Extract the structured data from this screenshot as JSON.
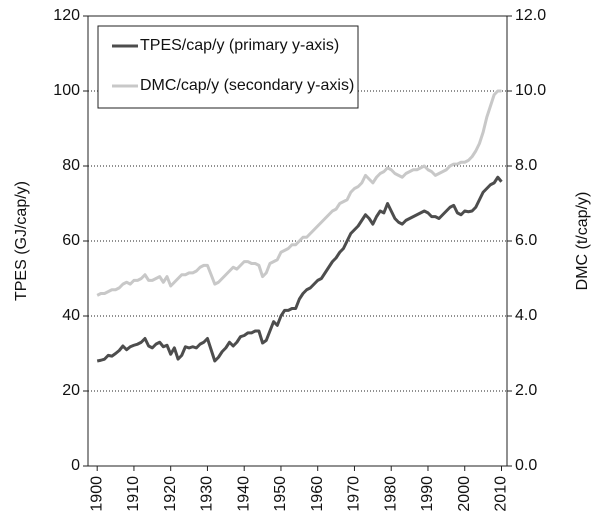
{
  "chart_data": {
    "type": "line",
    "y_label": "TPES (GJ/cap/y)",
    "y2_label": "DMC (t/cap/y)",
    "x": [
      1900,
      1901,
      1902,
      1903,
      1904,
      1905,
      1906,
      1907,
      1908,
      1909,
      1910,
      1911,
      1912,
      1913,
      1914,
      1915,
      1916,
      1917,
      1918,
      1919,
      1920,
      1921,
      1922,
      1923,
      1924,
      1925,
      1926,
      1927,
      1928,
      1929,
      1930,
      1931,
      1932,
      1933,
      1934,
      1935,
      1936,
      1937,
      1938,
      1939,
      1940,
      1941,
      1942,
      1943,
      1944,
      1945,
      1946,
      1947,
      1948,
      1949,
      1950,
      1951,
      1952,
      1953,
      1954,
      1955,
      1956,
      1957,
      1958,
      1959,
      1960,
      1961,
      1962,
      1963,
      1964,
      1965,
      1966,
      1967,
      1968,
      1969,
      1970,
      1971,
      1972,
      1973,
      1974,
      1975,
      1976,
      1977,
      1978,
      1979,
      1980,
      1981,
      1982,
      1983,
      1984,
      1985,
      1986,
      1987,
      1988,
      1989,
      1990,
      1991,
      1992,
      1993,
      1994,
      1995,
      1996,
      1997,
      1998,
      1999,
      2000,
      2001,
      2002,
      2003,
      2004,
      2005,
      2006,
      2007,
      2008,
      2009,
      2010
    ],
    "series": [
      {
        "name": "TPES/cap/y (primary y-axis)",
        "color": "#4d4d4d",
        "axis": "y",
        "values": [
          28,
          28.2,
          28.5,
          29.5,
          29.3,
          30,
          30.8,
          32,
          31,
          31.8,
          32.2,
          32.5,
          33,
          34,
          32,
          31.5,
          32.5,
          33,
          31.8,
          32.2,
          29.8,
          31.5,
          28.5,
          29.5,
          31.8,
          31.5,
          31.8,
          31.5,
          32.5,
          33,
          34,
          31,
          28,
          29,
          30.5,
          31.5,
          33,
          32,
          33,
          34.5,
          34.8,
          35.5,
          35.5,
          36,
          36,
          32.8,
          33.5,
          36,
          38.5,
          37.5,
          40,
          41.5,
          41.5,
          42,
          42,
          44.5,
          46,
          47,
          47.5,
          48.5,
          49.5,
          50,
          51.5,
          53,
          54.5,
          55.5,
          57,
          58,
          60,
          62,
          63,
          64,
          65.5,
          67,
          66,
          64.5,
          66.5,
          68,
          67.5,
          70,
          68,
          66,
          65,
          64.5,
          65.5,
          66,
          66.5,
          67,
          67.5,
          68,
          67.5,
          66.5,
          66.5,
          66,
          67,
          68,
          69,
          69.5,
          67.5,
          67,
          68,
          67.8,
          68,
          69,
          71,
          73,
          74,
          75,
          75.5,
          77,
          75.8
        ]
      },
      {
        "name": "DMC/cap/y (secondary y-axis)",
        "color": "#c8c8c8",
        "axis": "y2",
        "values": [
          4.55,
          4.6,
          4.6,
          4.65,
          4.7,
          4.7,
          4.75,
          4.85,
          4.9,
          4.85,
          4.95,
          4.95,
          5.0,
          5.1,
          4.95,
          4.95,
          5.0,
          5.05,
          4.9,
          5.05,
          4.8,
          4.9,
          5.0,
          5.1,
          5.1,
          5.15,
          5.15,
          5.2,
          5.3,
          5.35,
          5.35,
          5.1,
          4.85,
          4.9,
          5.0,
          5.1,
          5.2,
          5.3,
          5.25,
          5.35,
          5.45,
          5.45,
          5.4,
          5.4,
          5.35,
          5.05,
          5.15,
          5.4,
          5.45,
          5.5,
          5.7,
          5.75,
          5.8,
          5.9,
          5.9,
          6.0,
          6.1,
          6.1,
          6.2,
          6.3,
          6.4,
          6.5,
          6.6,
          6.7,
          6.8,
          6.85,
          7.0,
          7.05,
          7.1,
          7.3,
          7.4,
          7.45,
          7.55,
          7.75,
          7.65,
          7.55,
          7.7,
          7.8,
          7.85,
          7.95,
          7.9,
          7.8,
          7.75,
          7.7,
          7.8,
          7.85,
          7.9,
          7.9,
          7.95,
          8.0,
          7.9,
          7.85,
          7.75,
          7.8,
          7.85,
          7.9,
          8.0,
          8.05,
          8.05,
          8.1,
          8.1,
          8.15,
          8.25,
          8.4,
          8.6,
          8.9,
          9.3,
          9.6,
          9.9,
          10.0,
          10.0
        ]
      }
    ],
    "xlim": [
      1897.5,
      2011.5
    ],
    "xticks": [
      1900,
      1910,
      1920,
      1930,
      1940,
      1950,
      1960,
      1970,
      1980,
      1990,
      2000,
      2010
    ],
    "ylim": [
      0,
      120
    ],
    "yticks": [
      0,
      20,
      40,
      60,
      80,
      100,
      120
    ],
    "y2lim": [
      0,
      12
    ],
    "y2ticks": [
      {
        "value": 0,
        "label": "0.0"
      },
      {
        "value": 2,
        "label": "2.0"
      },
      {
        "value": 4,
        "label": "4.0"
      },
      {
        "value": 6,
        "label": "6.0"
      },
      {
        "value": 8,
        "label": "8.0"
      },
      {
        "value": 10,
        "label": "10.0"
      },
      {
        "value": 12,
        "label": "12.0"
      }
    ],
    "grid": true,
    "legend": "upper left"
  }
}
